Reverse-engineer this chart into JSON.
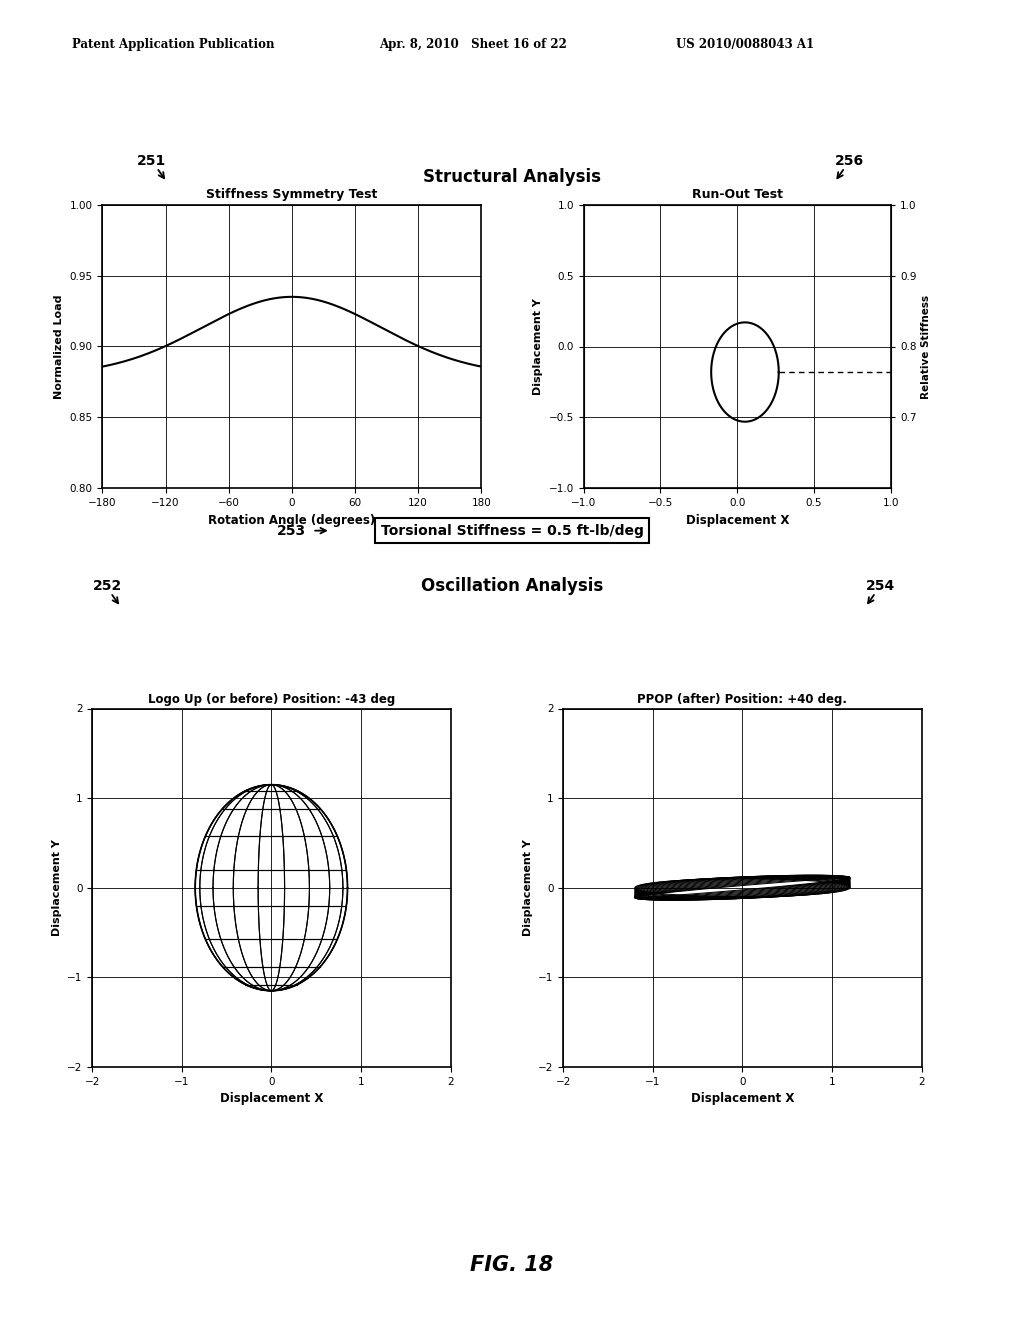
{
  "header_left": "Patent Application Publication",
  "header_mid": "Apr. 8, 2010   Sheet 16 of 22",
  "header_right": "US 2010/0088043 A1",
  "fig_label": "FIG. 18",
  "structural_title": "Structural Analysis",
  "oscillation_title": "Oscillation Analysis",
  "label_251": "251",
  "label_256": "256",
  "label_252": "252",
  "label_254": "254",
  "label_253": "253",
  "torsional_box": "Torsional Stiffness = 0.5 ft-lb/deg",
  "plot1_title": "Stiffness Symmetry Test",
  "plot1_xlabel": "Rotation Angle (degrees)",
  "plot1_ylabel": "Normalized Load",
  "plot1_xlim": [
    -180,
    180
  ],
  "plot1_ylim": [
    0.8,
    1.0
  ],
  "plot1_xticks": [
    -180,
    -120,
    -60,
    0,
    60,
    120,
    180
  ],
  "plot1_yticks": [
    0.8,
    0.85,
    0.9,
    0.95,
    1.0
  ],
  "plot2_title": "Run-Out Test",
  "plot2_xlabel": "Displacement X",
  "plot2_ylabel": "Displacement Y",
  "plot2_ylabel2": "Relative Stiffness",
  "plot2_xlim": [
    -1.0,
    1.0
  ],
  "plot2_ylim": [
    -1.0,
    1.0
  ],
  "plot2_xticks": [
    -1.0,
    -0.5,
    0,
    0.5,
    1.0
  ],
  "plot2_yticks": [
    -1.0,
    -0.5,
    0,
    0.5,
    1.0
  ],
  "plot2_y2ticks_vals": [
    -0.5,
    0.0,
    0.5,
    1.0
  ],
  "plot2_y2ticks_labels": [
    "0.7",
    "0.8",
    "0.9",
    "1.0"
  ],
  "plot3_title": "Logo Up (or before) Position: -43 deg",
  "plot3_xlabel": "Displacement X",
  "plot3_ylabel": "Displacement Y",
  "plot3_xlim": [
    -2.0,
    2.0
  ],
  "plot3_ylim": [
    -2.0,
    2.0
  ],
  "plot3_xticks": [
    -2.0,
    -1.0,
    0,
    1.0,
    2.0
  ],
  "plot3_yticks": [
    -2.0,
    -1.0,
    0,
    1.0,
    2.0
  ],
  "plot4_title": "PPOP (after) Position: +40 deg.",
  "plot4_xlabel": "Displacement X",
  "plot4_ylabel": "Displacement Y",
  "plot4_xlim": [
    -2.0,
    2.0
  ],
  "plot4_ylim": [
    -2.0,
    2.0
  ],
  "plot4_xticks": [
    -2.0,
    -1.0,
    0,
    1.0,
    2.0
  ],
  "plot4_yticks": [
    -2.0,
    -1.0,
    0,
    1.0,
    2.0
  ],
  "bg_color": "#ffffff",
  "line_color": "#000000"
}
